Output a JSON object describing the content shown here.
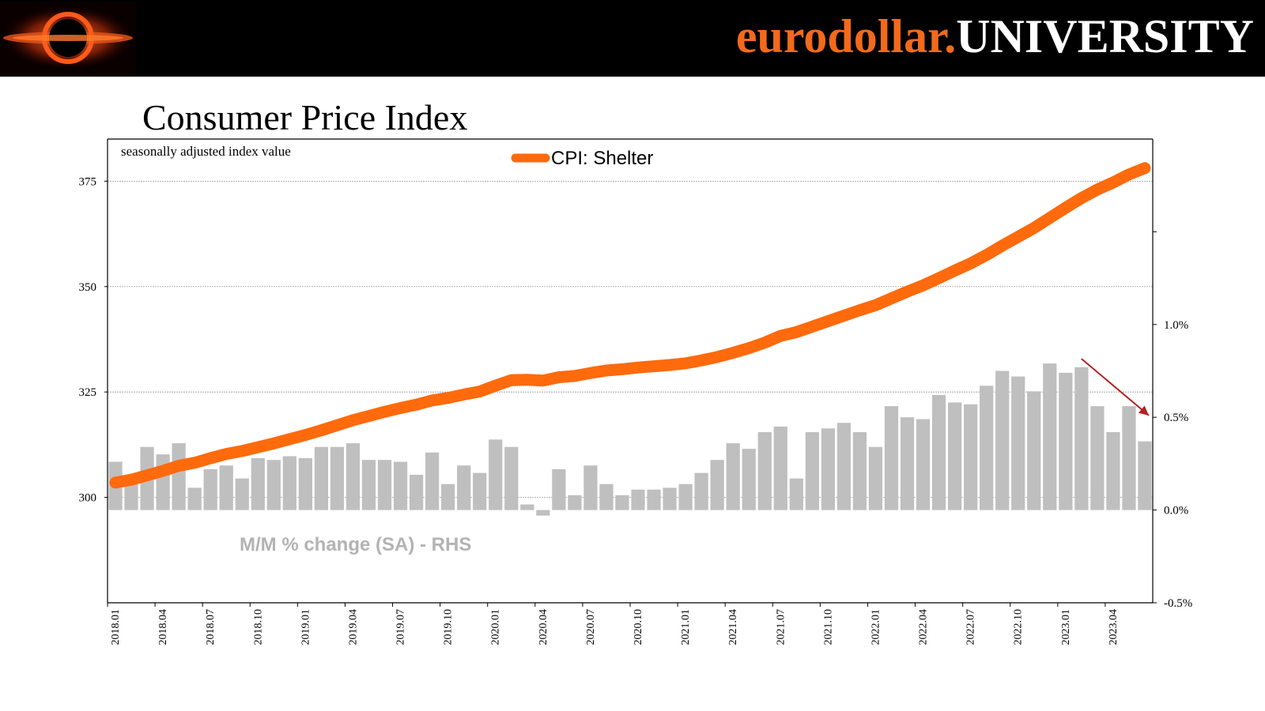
{
  "header": {
    "brand_part1": "eurodollar.",
    "brand_part2": "UNIVERSITY",
    "brand_color": "#f26a1b",
    "background": "#000000"
  },
  "chart_data": {
    "type": "line",
    "title": "Consumer Price Index",
    "subtitle": "seasonally adjusted index value",
    "line_series": {
      "name": "CPI: Shelter",
      "color": "#ff6a0c",
      "x": [
        "2018.01",
        "2018.02",
        "2018.03",
        "2018.04",
        "2018.05",
        "2018.06",
        "2018.07",
        "2018.08",
        "2018.09",
        "2018.10",
        "2018.11",
        "2018.12",
        "2019.01",
        "2019.02",
        "2019.03",
        "2019.04",
        "2019.05",
        "2019.06",
        "2019.07",
        "2019.08",
        "2019.09",
        "2019.10",
        "2019.11",
        "2019.12",
        "2020.01",
        "2020.02",
        "2020.03",
        "2020.04",
        "2020.05",
        "2020.06",
        "2020.07",
        "2020.08",
        "2020.09",
        "2020.10",
        "2020.11",
        "2020.12",
        "2021.01",
        "2021.02",
        "2021.03",
        "2021.04",
        "2021.05",
        "2021.06",
        "2021.07",
        "2021.08",
        "2021.09",
        "2021.10",
        "2021.11",
        "2021.12",
        "2022.01",
        "2022.02",
        "2022.03",
        "2022.04",
        "2022.05",
        "2022.06",
        "2022.07",
        "2022.08",
        "2022.09",
        "2022.10",
        "2022.11",
        "2022.12",
        "2023.01",
        "2023.02",
        "2023.03",
        "2023.04",
        "2023.05",
        "2023.06"
      ],
      "values": [
        303.5,
        304.2,
        305.2,
        306.3,
        307.5,
        308.2,
        309.3,
        310.3,
        311.0,
        311.9,
        312.8,
        313.8,
        314.8,
        315.9,
        317.1,
        318.3,
        319.3,
        320.3,
        321.2,
        322.0,
        323.0,
        323.6,
        324.4,
        325.1,
        326.5,
        327.8,
        327.9,
        327.7,
        328.5,
        328.8,
        329.5,
        330.1,
        330.4,
        330.8,
        331.1,
        331.4,
        331.8,
        332.5,
        333.3,
        334.3,
        335.4,
        336.7,
        338.3,
        339.2,
        340.5,
        341.8,
        343.1,
        344.4,
        345.6,
        347.2,
        348.8,
        350.3,
        352.0,
        353.8,
        355.5,
        357.5,
        359.7,
        361.8,
        363.9,
        366.3,
        368.7,
        371.0,
        373.0,
        374.7,
        376.6,
        378.1
      ]
    },
    "bar_series": {
      "name": "M/M % change (SA) - RHS",
      "color": "#bfbfbf",
      "values": [
        0.26,
        0.16,
        0.34,
        0.3,
        0.36,
        0.12,
        0.22,
        0.24,
        0.17,
        0.28,
        0.27,
        0.29,
        0.28,
        0.34,
        0.34,
        0.36,
        0.27,
        0.27,
        0.26,
        0.19,
        0.31,
        0.14,
        0.24,
        0.2,
        0.38,
        0.34,
        0.03,
        -0.03,
        0.22,
        0.08,
        0.24,
        0.14,
        0.08,
        0.11,
        0.11,
        0.12,
        0.14,
        0.2,
        0.27,
        0.36,
        0.33,
        0.42,
        0.45,
        0.17,
        0.42,
        0.44,
        0.47,
        0.42,
        0.34,
        0.56,
        0.5,
        0.49,
        0.62,
        0.58,
        0.57,
        0.67,
        0.75,
        0.72,
        0.64,
        0.79,
        0.74,
        0.77,
        0.56,
        0.42,
        0.56,
        0.37
      ]
    },
    "y_left": {
      "ticks": [
        "300",
        "325",
        "350",
        "375"
      ],
      "range": [
        275,
        385
      ]
    },
    "y_right": {
      "ticks": [
        "-0.5%",
        "0.0%",
        "0.5%",
        "1.0%"
      ],
      "range": [
        -0.5,
        2.0
      ]
    },
    "x_tick_labels": [
      "2018.01",
      "2018.04",
      "2018.07",
      "2018.10",
      "2019.01",
      "2019.04",
      "2019.07",
      "2019.10",
      "2020.01",
      "2020.04",
      "2020.07",
      "2020.10",
      "2021.01",
      "2021.04",
      "2021.07",
      "2021.10",
      "2022.01",
      "2022.04",
      "2022.07",
      "2022.10",
      "2023.01",
      "2023.04"
    ],
    "annotation_arrow": {
      "from": "2023.02",
      "to": "2023.06",
      "color": "#b22222"
    },
    "grid": true,
    "legend": "top-center"
  }
}
